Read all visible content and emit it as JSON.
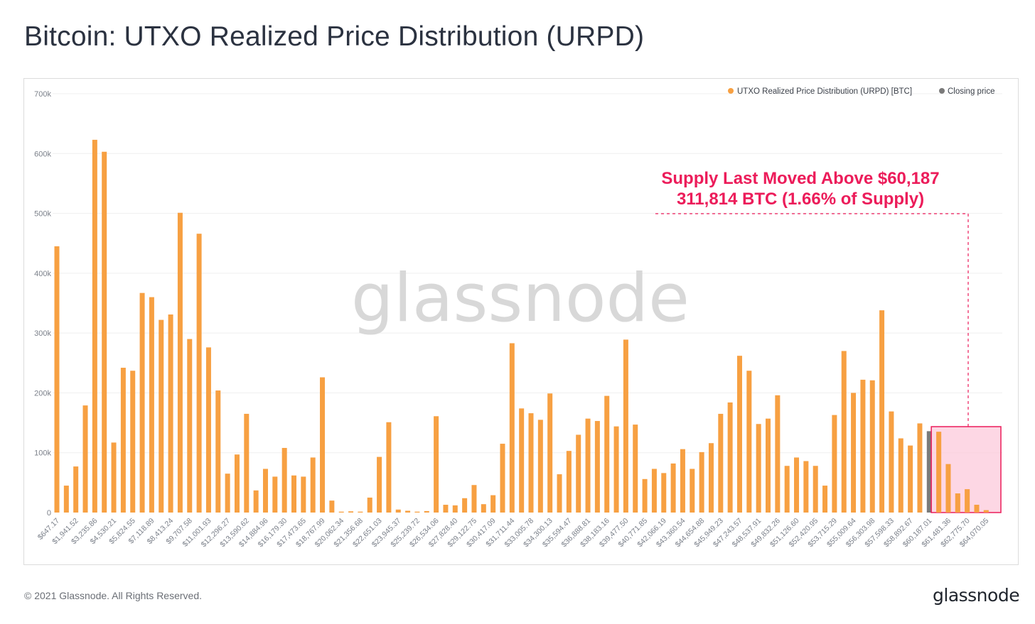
{
  "title": "Bitcoin: UTXO Realized Price Distribution (URPD)",
  "footer": {
    "copyright": "© 2021 Glassnode. All Rights Reserved.",
    "logo": "glassnode"
  },
  "watermark": "glassnode",
  "colors": {
    "bar": "#f7a042",
    "closing": "#7a7a7a",
    "highlight_fill": "#fcc6d8",
    "highlight_stroke": "#ec1c5a",
    "annotation": "#ec1c5a"
  },
  "chart_data": {
    "type": "bar",
    "title": "Bitcoin: UTXO Realized Price Distribution (URPD)",
    "xlabel": "",
    "ylabel": "",
    "ylim": [
      0,
      700000
    ],
    "yticks": [
      0,
      100000,
      200000,
      300000,
      400000,
      500000,
      600000,
      700000
    ],
    "ytick_labels": [
      "0",
      "100k",
      "200k",
      "300k",
      "400k",
      "500k",
      "600k",
      "700k"
    ],
    "grid": true,
    "legend_position": "top-right",
    "legend": [
      {
        "label": "UTXO Realized Price Distribution (URPD) [BTC]",
        "color": "#f7a042"
      },
      {
        "label": "Closing price",
        "color": "#7a7a7a"
      }
    ],
    "xtick_labels": [
      "$647.17",
      "$1,941.52",
      "$3,235.86",
      "$4,530.21",
      "$5,824.55",
      "$7,118.89",
      "$8,413.24",
      "$9,707.58",
      "$11,001.93",
      "$12,296.27",
      "$13,590.62",
      "$14,884.96",
      "$16,179.30",
      "$17,473.65",
      "$18,767.99",
      "$20,062.34",
      "$21,356.68",
      "$22,651.03",
      "$23,945.37",
      "$25,239.72",
      "$26,534.06",
      "$27,828.40",
      "$29,122.75",
      "$30,417.09",
      "$31,711.44",
      "$33,005.78",
      "$34,300.13",
      "$35,594.47",
      "$36,888.81",
      "$38,183.16",
      "$39,477.50",
      "$40,771.85",
      "$42,066.19",
      "$43,360.54",
      "$44,654.88",
      "$45,949.23",
      "$47,243.57",
      "$48,537.91",
      "$49,832.26",
      "$51,126.60",
      "$52,420.95",
      "$53,715.29",
      "$55,009.64",
      "$56,303.98",
      "$57,598.33",
      "$58,892.67",
      "$60,187.01",
      "$61,481.36",
      "$62,775.70",
      "$64,070.05"
    ],
    "values": [
      445000,
      45000,
      77000,
      179000,
      623000,
      603000,
      117000,
      242000,
      237000,
      367000,
      360000,
      322000,
      331000,
      501000,
      290000,
      466000,
      276000,
      204000,
      65000,
      97000,
      165000,
      37000,
      73000,
      60000,
      108000,
      62000,
      60000,
      92000,
      226000,
      20000,
      1500,
      2000,
      1500,
      25000,
      93000,
      151000,
      5000,
      3000,
      1500,
      2500,
      161000,
      13000,
      12000,
      24000,
      46000,
      14000,
      29000,
      115000,
      283000,
      174000,
      166000,
      155000,
      199000,
      64000,
      103000,
      130000,
      157000,
      153000,
      195000,
      144000,
      289000,
      147000,
      56000,
      73000,
      66000,
      82000,
      106000,
      73000,
      101000,
      116000,
      165000,
      184000,
      262000,
      237000,
      148000,
      157000,
      196000,
      78000,
      92000,
      86000,
      78000,
      45000,
      163000,
      270000,
      200000,
      222000,
      221000,
      338000,
      169000,
      124000,
      112000,
      149000,
      136000,
      135000,
      81000,
      32000,
      39000,
      13000,
      4000
    ],
    "closing_price_bar_index": 92,
    "highlight_start_index": 93,
    "annotations": [
      "Supply Last Moved Above $60,187",
      "311,814 BTC (1.66% of Supply)"
    ]
  }
}
